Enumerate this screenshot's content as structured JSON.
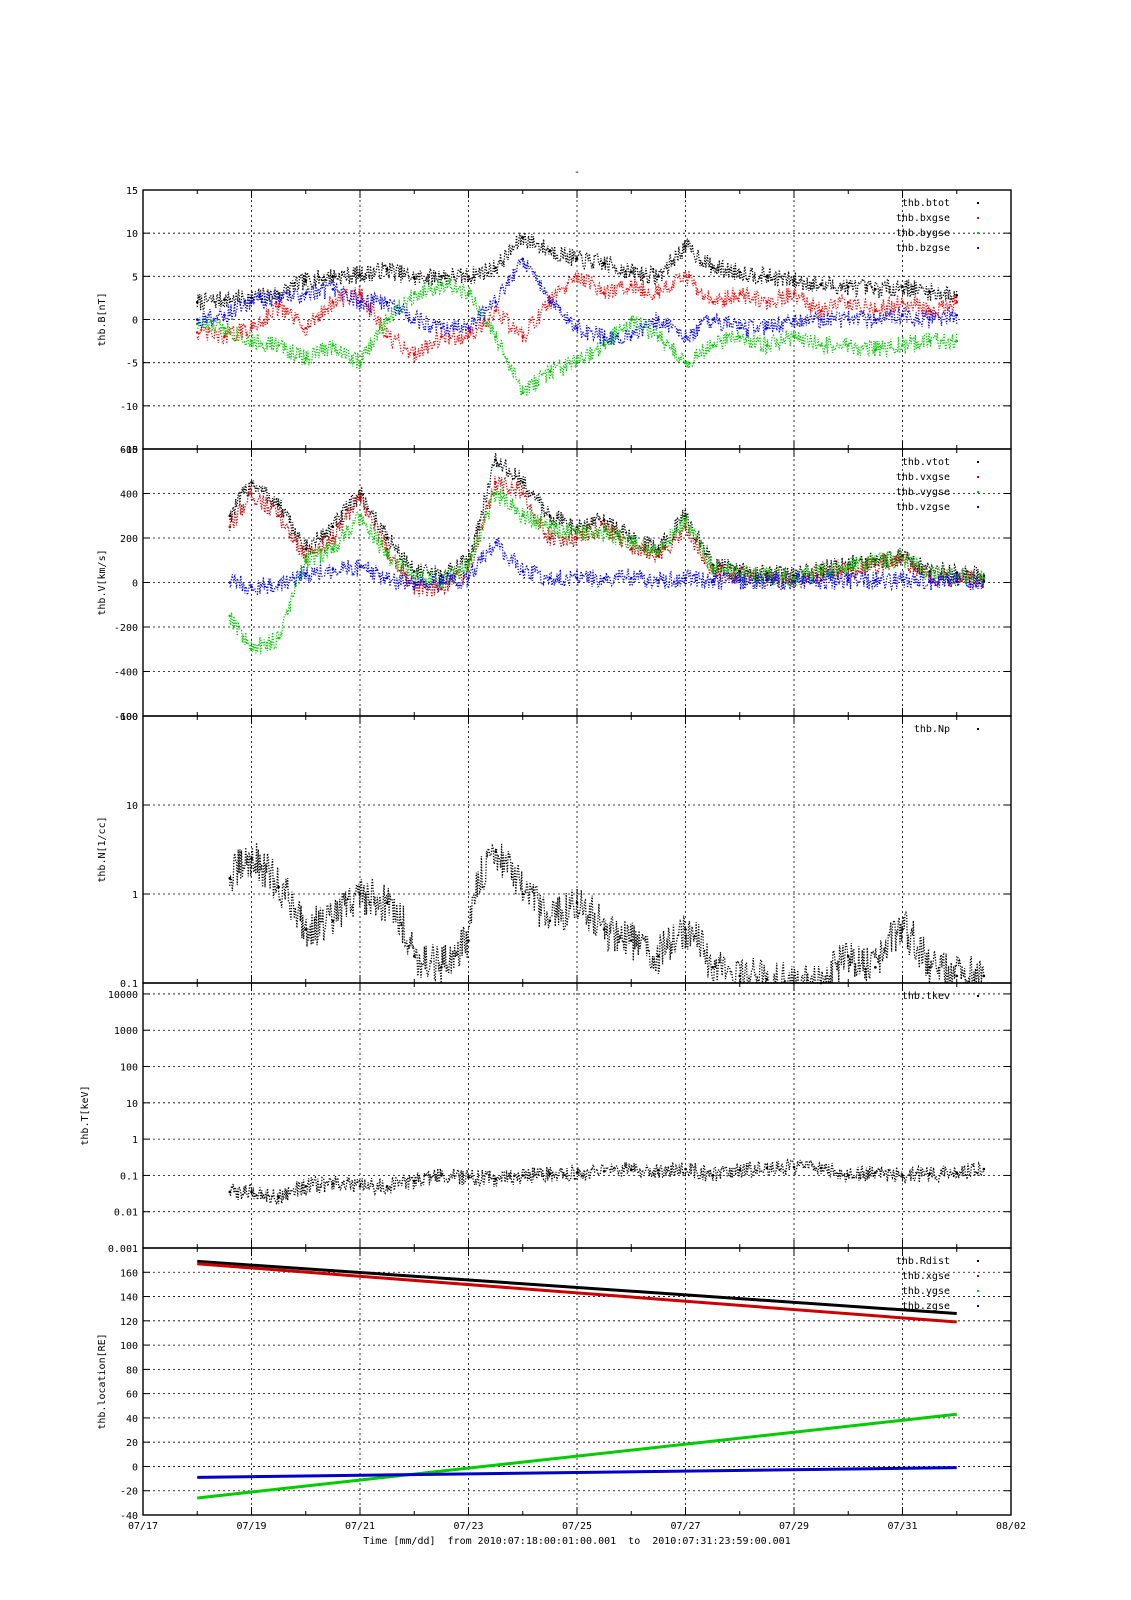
{
  "chart_data": {
    "type": "scatter",
    "title": "-",
    "xlabel": "Time [mm/dd]  from 2010:07:18:00:01:00.001  to  2010:07:31:23:59:00.001",
    "xlim": [
      "07/17",
      "08/02"
    ],
    "x_ticks": [
      "07/17",
      "07/19",
      "07/21",
      "07/23",
      "07/25",
      "07/27",
      "07/29",
      "07/31",
      "08/02"
    ],
    "legend_position": "top-right",
    "grid": true,
    "panels": [
      {
        "ylabel": "thb.B[nT]",
        "scale": "linear",
        "ylim": [
          -15,
          15
        ],
        "y_ticks": [
          15,
          10,
          5,
          0,
          -5,
          -10,
          -15
        ],
        "y_tick_labels": [
          "15",
          "10",
          "5",
          "0",
          "-5",
          "-10",
          "-15"
        ],
        "series": [
          {
            "name": "thb.btot",
            "color": "#000000",
            "x": [
              "07/18.0",
              "07/18.5",
              "07/19.0",
              "07/19.5",
              "07/20.0",
              "07/20.5",
              "07/21.0",
              "07/21.5",
              "07/22.0",
              "07/22.5",
              "07/23.0",
              "07/23.5",
              "07/24.0",
              "07/24.5",
              "07/25.0",
              "07/25.5",
              "07/26.0",
              "07/26.5",
              "07/27.0",
              "07/27.5",
              "07/28.0",
              "07/28.5",
              "07/29.0",
              "07/29.5",
              "07/30.0",
              "07/30.5",
              "07/31.0",
              "07/31.5",
              "08/01.0"
            ],
            "y": [
              2,
              2.3,
              2.5,
              3,
              4.5,
              5,
              5.2,
              5.8,
              4.8,
              5,
              5,
              6,
              9.5,
              8,
              7,
              6.5,
              5.5,
              5,
              8.5,
              6,
              5.5,
              5,
              4.5,
              4,
              3.8,
              3.5,
              3.8,
              3.2,
              2.8
            ]
          },
          {
            "name": "thb.bxgse",
            "color": "#ff0000",
            "x": [
              "07/18.0",
              "07/18.5",
              "07/19.0",
              "07/19.5",
              "07/20.0",
              "07/20.5",
              "07/21.0",
              "07/21.5",
              "07/22.0",
              "07/22.5",
              "07/23.0",
              "07/23.5",
              "07/24.0",
              "07/24.5",
              "07/25.0",
              "07/25.5",
              "07/26.0",
              "07/26.5",
              "07/27.0",
              "07/27.5",
              "07/28.0",
              "07/28.5",
              "07/29.0",
              "07/29.5",
              "07/30.0",
              "07/30.5",
              "07/31.0",
              "07/31.5",
              "08/01.0"
            ],
            "y": [
              -1.5,
              -2,
              -1,
              1.5,
              -1,
              2,
              3,
              -2,
              -4,
              -2,
              -2,
              1,
              -2,
              2,
              5,
              3,
              4,
              3,
              5,
              2,
              3,
              2,
              3,
              1,
              2,
              1,
              2,
              1,
              2
            ]
          },
          {
            "name": "thb.bygse",
            "color": "#00cc00",
            "x": [
              "07/18.0",
              "07/18.5",
              "07/19.0",
              "07/19.5",
              "07/20.0",
              "07/20.5",
              "07/21.0",
              "07/21.5",
              "07/22.0",
              "07/22.5",
              "07/23.0",
              "07/23.5",
              "07/24.0",
              "07/24.5",
              "07/25.0",
              "07/25.5",
              "07/26.0",
              "07/26.5",
              "07/27.0",
              "07/27.5",
              "07/28.0",
              "07/28.5",
              "07/29.0",
              "07/29.5",
              "07/30.0",
              "07/30.5",
              "07/31.0",
              "07/31.5",
              "08/01.0"
            ],
            "y": [
              -0.5,
              -1,
              -2.5,
              -3,
              -4.5,
              -3,
              -5,
              0,
              3,
              4,
              3,
              -2,
              -8.5,
              -6,
              -5,
              -3,
              0,
              -2,
              -5,
              -3,
              -2,
              -3,
              -2,
              -3,
              -3,
              -3.5,
              -3,
              -2.5,
              -2.5
            ]
          },
          {
            "name": "thb.bzgse",
            "color": "#0000ff",
            "x": [
              "07/18.0",
              "07/18.5",
              "07/19.0",
              "07/19.5",
              "07/20.0",
              "07/20.5",
              "07/21.0",
              "07/21.5",
              "07/22.0",
              "07/22.5",
              "07/23.0",
              "07/23.5",
              "07/24.0",
              "07/24.5",
              "07/25.0",
              "07/25.5",
              "07/26.0",
              "07/26.5",
              "07/27.0",
              "07/27.5",
              "07/28.0",
              "07/28.5",
              "07/29.0",
              "07/29.5",
              "07/30.0",
              "07/30.5",
              "07/31.0",
              "07/31.5",
              "08/01.0"
            ],
            "y": [
              0,
              0.5,
              2,
              2.5,
              3,
              3.5,
              2,
              2,
              0,
              -1,
              -1,
              2,
              7,
              2,
              -1,
              -2,
              -2,
              0,
              -2,
              0,
              -1,
              -1,
              0,
              0,
              0,
              0,
              0.5,
              0,
              0.5
            ]
          }
        ]
      },
      {
        "ylabel": "thb.V[km/s]",
        "scale": "linear",
        "ylim": [
          -600,
          600
        ],
        "y_ticks": [
          600,
          400,
          200,
          0,
          -200,
          -400,
          -600
        ],
        "y_tick_labels": [
          "600",
          "400",
          "200",
          "0",
          "-200",
          "-400",
          "-600"
        ],
        "series": [
          {
            "name": "thb.vtot",
            "color": "#000000",
            "x": [
              "07/18.6",
              "07/19.0",
              "07/19.5",
              "07/20.0",
              "07/20.5",
              "07/21.0",
              "07/21.5",
              "07/22.0",
              "07/22.5",
              "07/23.0",
              "07/23.5",
              "07/24.0",
              "07/24.5",
              "07/25.0",
              "07/25.5",
              "07/26.0",
              "07/26.5",
              "07/27.0",
              "07/27.5",
              "07/28.0",
              "07/28.5",
              "07/29.0",
              "07/29.5",
              "07/30.0",
              "07/30.5",
              "07/31.0",
              "07/31.5",
              "08/01.0",
              "08/01.5"
            ],
            "y": [
              300,
              450,
              350,
              150,
              250,
              400,
              200,
              50,
              30,
              100,
              550,
              450,
              300,
              250,
              280,
              200,
              150,
              300,
              80,
              50,
              40,
              30,
              60,
              80,
              100,
              120,
              50,
              40,
              30
            ]
          },
          {
            "name": "thb.vxgse",
            "color": "#cc0000",
            "x": [
              "07/18.6",
              "07/19.0",
              "07/19.5",
              "07/20.0",
              "07/20.5",
              "07/21.0",
              "07/21.5",
              "07/22.0",
              "07/22.5",
              "07/23.0",
              "07/23.5",
              "07/24.0",
              "07/24.5",
              "07/25.0",
              "07/25.5",
              "07/26.0",
              "07/26.5",
              "07/27.0",
              "07/27.5",
              "07/28.0",
              "07/28.5",
              "07/29.0",
              "07/29.5",
              "07/30.0",
              "07/30.5",
              "07/31.0",
              "07/31.5",
              "08/01.0",
              "08/01.5"
            ],
            "y": [
              250,
              400,
              300,
              120,
              200,
              380,
              150,
              -20,
              -30,
              50,
              450,
              400,
              200,
              200,
              250,
              150,
              120,
              250,
              50,
              30,
              20,
              10,
              40,
              60,
              80,
              100,
              30,
              20,
              10
            ]
          },
          {
            "name": "thb.vygse",
            "color": "#00cc00",
            "x": [
              "07/18.6",
              "07/19.0",
              "07/19.5",
              "07/20.0",
              "07/20.5",
              "07/21.0",
              "07/21.5",
              "07/22.0",
              "07/22.5",
              "07/23.0",
              "07/23.5",
              "07/24.0",
              "07/24.5",
              "07/25.0",
              "07/25.5",
              "07/26.0",
              "07/26.5",
              "07/27.0",
              "07/27.5",
              "07/28.0",
              "07/28.5",
              "07/29.0",
              "07/29.5",
              "07/30.0",
              "07/30.5",
              "07/31.0",
              "07/31.5",
              "08/01.0",
              "08/01.5"
            ],
            "y": [
              -150,
              -300,
              -250,
              100,
              150,
              300,
              120,
              20,
              10,
              80,
              400,
              300,
              250,
              220,
              230,
              180,
              140,
              280,
              70,
              40,
              30,
              20,
              50,
              70,
              90,
              110,
              40,
              30,
              20
            ]
          },
          {
            "name": "thb.vzgse",
            "color": "#0000ff",
            "x": [
              "07/18.6",
              "07/19.0",
              "07/19.5",
              "07/20.0",
              "07/20.5",
              "07/21.0",
              "07/21.5",
              "07/22.0",
              "07/22.5",
              "07/23.0",
              "07/23.5",
              "07/24.0",
              "07/24.5",
              "07/25.0",
              "07/25.5",
              "07/26.0",
              "07/26.5",
              "07/27.0",
              "07/27.5",
              "07/28.0",
              "07/28.5",
              "07/29.0",
              "07/29.5",
              "07/30.0",
              "07/30.5",
              "07/31.0",
              "07/31.5",
              "08/01.0",
              "08/01.5"
            ],
            "y": [
              0,
              -20,
              -10,
              40,
              60,
              70,
              20,
              0,
              0,
              20,
              180,
              50,
              20,
              20,
              20,
              20,
              10,
              20,
              10,
              10,
              10,
              5,
              10,
              10,
              10,
              10,
              5,
              5,
              5
            ]
          }
        ]
      },
      {
        "ylabel": "thb.N[1/cc]",
        "scale": "log",
        "ylim": [
          0.1,
          100
        ],
        "y_ticks": [
          100,
          10,
          1,
          0.1
        ],
        "y_tick_labels": [
          "100",
          "10",
          "1",
          "0.1"
        ],
        "series": [
          {
            "name": "thb.Np",
            "color": "#000000",
            "x": [
              "07/18.6",
              "07/19.0",
              "07/19.5",
              "07/20.0",
              "07/20.5",
              "07/21.0",
              "07/21.5",
              "07/22.0",
              "07/22.5",
              "07/23.0",
              "07/23.5",
              "07/24.0",
              "07/24.5",
              "07/25.0",
              "07/25.5",
              "07/26.0",
              "07/26.5",
              "07/27.0",
              "07/27.5",
              "07/28.0",
              "07/28.5",
              "07/29.0",
              "07/29.5",
              "07/30.0",
              "07/30.5",
              "07/31.0",
              "07/31.5",
              "08/01.0",
              "08/01.5"
            ],
            "y": [
              1.5,
              2.5,
              1.2,
              0.4,
              0.5,
              1.0,
              0.8,
              0.2,
              0.15,
              0.3,
              3.0,
              1.0,
              0.5,
              0.8,
              0.4,
              0.3,
              0.2,
              0.4,
              0.15,
              0.12,
              0.11,
              0.1,
              0.1,
              0.2,
              0.15,
              0.4,
              0.15,
              0.12,
              0.12
            ]
          }
        ]
      },
      {
        "ylabel": "thb.T[keV]",
        "scale": "log",
        "ylim": [
          0.001,
          20000
        ],
        "y_ticks": [
          10000,
          1000,
          100,
          10,
          1,
          0.1,
          0.01,
          0.001
        ],
        "y_tick_labels": [
          "10000",
          "1000",
          "100",
          "10",
          "1",
          "0.1",
          "0.01",
          "0.001"
        ],
        "series": [
          {
            "name": "thb.tkev",
            "color": "#000000",
            "x": [
              "07/18.6",
              "07/19.0",
              "07/19.5",
              "07/20.0",
              "07/20.5",
              "07/21.0",
              "07/21.5",
              "07/22.0",
              "07/22.5",
              "07/23.0",
              "07/23.5",
              "07/24.0",
              "07/24.5",
              "07/25.0",
              "07/25.5",
              "07/26.0",
              "07/26.5",
              "07/27.0",
              "07/27.5",
              "07/28.0",
              "07/28.5",
              "07/29.0",
              "07/29.5",
              "07/30.0",
              "07/30.5",
              "07/31.0",
              "07/31.5",
              "08/01.0",
              "08/01.5"
            ],
            "y": [
              0.035,
              0.035,
              0.025,
              0.05,
              0.06,
              0.05,
              0.05,
              0.07,
              0.1,
              0.09,
              0.08,
              0.1,
              0.11,
              0.12,
              0.13,
              0.14,
              0.14,
              0.15,
              0.1,
              0.14,
              0.16,
              0.17,
              0.16,
              0.1,
              0.12,
              0.1,
              0.11,
              0.12,
              0.15
            ]
          }
        ]
      },
      {
        "ylabel": "thb.location[RE]",
        "scale": "linear",
        "ylim": [
          -40,
          180
        ],
        "y_ticks": [
          160,
          140,
          120,
          100,
          80,
          60,
          40,
          20,
          0,
          -20,
          -40
        ],
        "y_tick_labels": [
          "160",
          "140",
          "120",
          "100",
          "80",
          "60",
          "40",
          "20",
          "0",
          "-20",
          "-40"
        ],
        "series": [
          {
            "name": "thb.Rdist",
            "color": "#000000",
            "x": [
              "07/18.0",
              "08/01.0"
            ],
            "y": [
              169,
              126
            ]
          },
          {
            "name": "thb.xgse",
            "color": "#cc0000",
            "x": [
              "07/18.0",
              "08/01.0"
            ],
            "y": [
              167,
              119
            ]
          },
          {
            "name": "thb.ygse",
            "color": "#00cc00",
            "x": [
              "07/18.0",
              "08/01.0"
            ],
            "y": [
              -26,
              43
            ]
          },
          {
            "name": "thb.zgse",
            "color": "#0000cc",
            "x": [
              "07/18.0",
              "08/01.0"
            ],
            "y": [
              -9,
              -1
            ]
          }
        ]
      }
    ]
  }
}
